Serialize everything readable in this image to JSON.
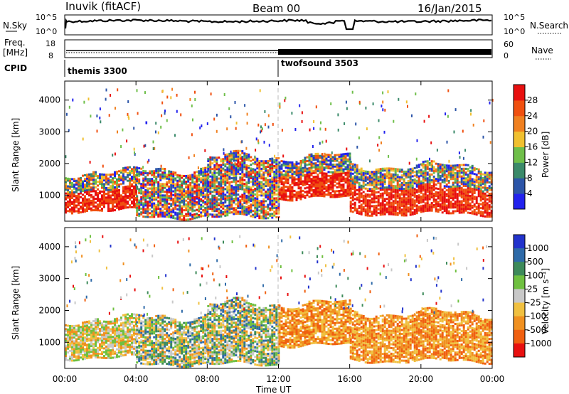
{
  "header": {
    "station": "Inuvik (fitACF)",
    "beam": "Beam 00",
    "date": "16/Jan/2015"
  },
  "top_panels": {
    "nsky_label": "N.Sky",
    "nsky_ticks": [
      "10^5",
      "10^0"
    ],
    "nsearch_label": "N.Search",
    "nsearch_ticks": [
      "10^5",
      "10^0"
    ],
    "freq_label": "Freq.",
    "freq_unit": "[MHz]",
    "freq_ticks": [
      "18",
      "8"
    ],
    "nave_label": "Nave",
    "nave_ticks": [
      "60",
      "0"
    ],
    "cpid_label": "CPID",
    "cpid_modes": [
      {
        "name": "themis 3300",
        "start_ut": 0,
        "end_ut": 12
      },
      {
        "name": "twofsound 3503",
        "start_ut": 12,
        "end_ut": 24
      }
    ]
  },
  "colors": {
    "power": [
      "#2222ee",
      "#2c55a8",
      "#3b8a6a",
      "#6fbf4a",
      "#f0c030",
      "#f08020",
      "#f05010",
      "#e81010"
    ],
    "velocity": [
      "#2233cc",
      "#2e6aa8",
      "#3d8a5a",
      "#6fc040",
      "#c8c8c8",
      "#f0c040",
      "#f09020",
      "#f06010",
      "#e81010"
    ],
    "dash_line": "#bbbbbb"
  },
  "chart_data": [
    {
      "type": "heatmap",
      "title": "",
      "quantity": "Power",
      "xlabel": "Time UT",
      "ylabel": "Slant Range [km]",
      "xlim": [
        0,
        24
      ],
      "ylim": [
        180,
        4600
      ],
      "x_tick_labels": [
        "00:00",
        "04:00",
        "08:00",
        "12:00",
        "16:00",
        "20:00",
        "00:00"
      ],
      "y_tick_labels": [
        "1000",
        "2000",
        "3000",
        "4000"
      ],
      "colorbar_label": "Power [dB]",
      "colorbar_ticks": [
        "4",
        "8",
        "12",
        "16",
        "20",
        "24",
        "28"
      ],
      "colorbar_range": [
        0,
        32
      ],
      "echo_bands": [
        {
          "t_start": 0,
          "t_end": 4,
          "range_low": 500,
          "range_high": 1700,
          "level": "strong"
        },
        {
          "t_start": 4,
          "t_end": 8,
          "range_low": 300,
          "range_high": 1800,
          "level": "mixed"
        },
        {
          "t_start": 8,
          "t_end": 12,
          "range_low": 300,
          "range_high": 2200,
          "level": "mixed"
        },
        {
          "t_start": 12,
          "t_end": 16,
          "range_low": 900,
          "range_high": 2200,
          "level": "strong"
        },
        {
          "t_start": 16,
          "t_end": 24,
          "range_low": 400,
          "range_high": 1900,
          "level": "strong"
        }
      ]
    },
    {
      "type": "heatmap",
      "title": "",
      "quantity": "Velocity",
      "xlabel": "Time UT",
      "ylabel": "Slant Range [km]",
      "xlim": [
        0,
        24
      ],
      "ylim": [
        180,
        4600
      ],
      "x_tick_labels": [
        "00:00",
        "04:00",
        "08:00",
        "12:00",
        "16:00",
        "20:00",
        "00:00"
      ],
      "y_tick_labels": [
        "1000",
        "2000",
        "3000",
        "4000"
      ],
      "colorbar_label": "Velocity [m s⁻¹]",
      "colorbar_ticks": [
        "1000",
        "500",
        "100",
        "25",
        "-25",
        "-100",
        "-500",
        "-1000"
      ],
      "echo_bands": [
        {
          "t_start": 0,
          "t_end": 4,
          "range_low": 500,
          "range_high": 1700,
          "level": "toward"
        },
        {
          "t_start": 4,
          "t_end": 8,
          "range_low": 300,
          "range_high": 1800,
          "level": "mixed"
        },
        {
          "t_start": 8,
          "t_end": 12,
          "range_low": 300,
          "range_high": 2200,
          "level": "mixed"
        },
        {
          "t_start": 12,
          "t_end": 16,
          "range_low": 900,
          "range_high": 2200,
          "level": "away"
        },
        {
          "t_start": 16,
          "t_end": 24,
          "range_low": 400,
          "range_high": 1900,
          "level": "away"
        }
      ]
    }
  ]
}
